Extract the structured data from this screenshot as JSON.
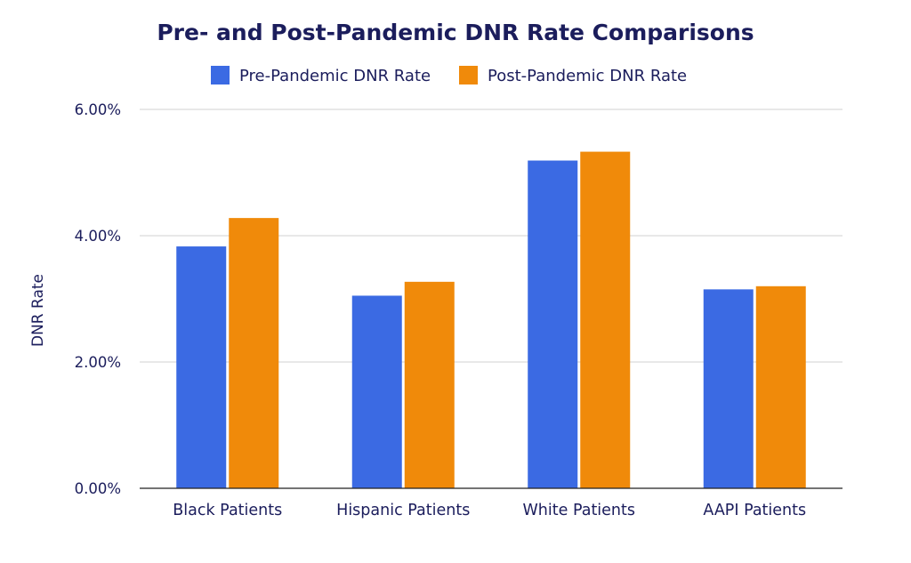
{
  "chart_data": {
    "type": "bar",
    "title": "Pre- and Post-Pandemic DNR Rate Comparisons",
    "xlabel": "",
    "ylabel": "DNR Rate",
    "categories": [
      "Black Patients",
      "Hispanic Patients",
      "White Patients",
      "AAPI Patients"
    ],
    "series": [
      {
        "name": "Pre-Pandemic DNR Rate",
        "color": "#3b6ae3",
        "values": [
          3.83,
          3.05,
          5.19,
          3.15
        ]
      },
      {
        "name": "Post-Pandemic DNR Rate",
        "color": "#f08a0a",
        "values": [
          4.28,
          3.27,
          5.33,
          3.2
        ]
      }
    ],
    "ylim": [
      0,
      6
    ],
    "yticks": [
      0,
      2,
      4,
      6
    ],
    "ytick_labels": [
      "0.00%",
      "2.00%",
      "4.00%",
      "6.00%"
    ],
    "grid": true,
    "legend_position": "top-center"
  }
}
